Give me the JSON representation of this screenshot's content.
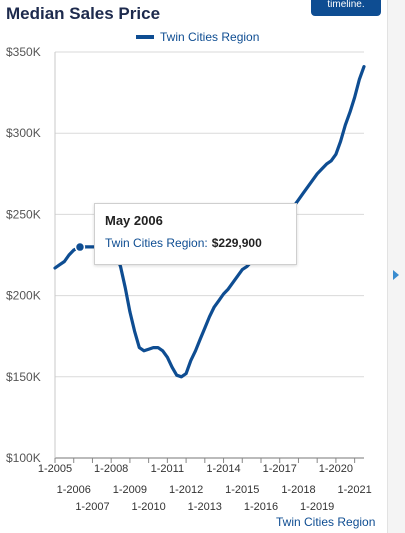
{
  "header": {
    "title": "Median Sales Price",
    "timeline_button_label": "timeline."
  },
  "legend": {
    "label": "Twin Cities Region",
    "color": "#0e4d92"
  },
  "chart_data": {
    "type": "line",
    "title": "Median Sales Price",
    "xlabel": "",
    "ylabel": "",
    "ylim": [
      100000,
      350000
    ],
    "y_ticks": [
      "$100K",
      "$150K",
      "$200K",
      "$250K",
      "$300K",
      "$350K"
    ],
    "y_tick_values": [
      100000,
      150000,
      200000,
      250000,
      300000,
      350000
    ],
    "x_ticks": [
      "1-2005",
      "1-2006",
      "1-2007",
      "1-2008",
      "1-2009",
      "1-2010",
      "1-2011",
      "1-2012",
      "1-2013",
      "1-2014",
      "1-2015",
      "1-2016",
      "1-2017",
      "1-2018",
      "1-2019",
      "1-2020",
      "1-2021"
    ],
    "grid": true,
    "legend_position": "top-center",
    "series": [
      {
        "name": "Twin Cities Region",
        "color": "#0e4d92",
        "x": [
          "1-2005",
          "4-2005",
          "7-2005",
          "10-2005",
          "1-2006",
          "5-2006",
          "9-2006",
          "1-2007",
          "5-2007",
          "9-2007",
          "1-2008",
          "4-2008",
          "7-2008",
          "10-2008",
          "1-2009",
          "4-2009",
          "7-2009",
          "10-2009",
          "1-2010",
          "4-2010",
          "7-2010",
          "10-2010",
          "1-2011",
          "4-2011",
          "7-2011",
          "10-2011",
          "1-2012",
          "4-2012",
          "7-2012",
          "10-2012",
          "1-2013",
          "4-2013",
          "7-2013",
          "10-2013",
          "1-2014",
          "4-2014",
          "7-2014",
          "10-2014",
          "1-2015",
          "4-2015",
          "7-2015",
          "10-2015",
          "1-2016",
          "4-2016",
          "7-2016",
          "10-2016",
          "1-2017",
          "4-2017",
          "7-2017",
          "10-2017",
          "1-2018",
          "4-2018",
          "7-2018",
          "10-2018",
          "1-2019",
          "4-2019",
          "7-2019",
          "10-2019",
          "1-2020",
          "4-2020",
          "7-2020",
          "10-2020",
          "1-2021",
          "4-2021",
          "7-2021"
        ],
        "values": [
          217000,
          219000,
          221000,
          225000,
          228000,
          229900,
          230000,
          230000,
          230000,
          230000,
          228000,
          225000,
          218000,
          205000,
          190000,
          178000,
          168000,
          166000,
          167000,
          168000,
          168000,
          166000,
          162000,
          156000,
          151000,
          150000,
          152000,
          160000,
          166000,
          173000,
          180000,
          187000,
          193000,
          197000,
          201000,
          204000,
          208000,
          212000,
          216000,
          218000,
          221000,
          225000,
          229000,
          232000,
          236000,
          240000,
          244000,
          247000,
          251000,
          255000,
          259000,
          263000,
          267000,
          271000,
          275000,
          278000,
          281000,
          283000,
          287000,
          295000,
          305000,
          313000,
          322000,
          333000,
          341000
        ]
      }
    ],
    "tooltip": {
      "date": "May 2006",
      "series": "Twin Cities Region:",
      "value": "$229,900",
      "x": "5-2006",
      "y": 229900
    }
  },
  "series_label": "Twin Cities Region"
}
